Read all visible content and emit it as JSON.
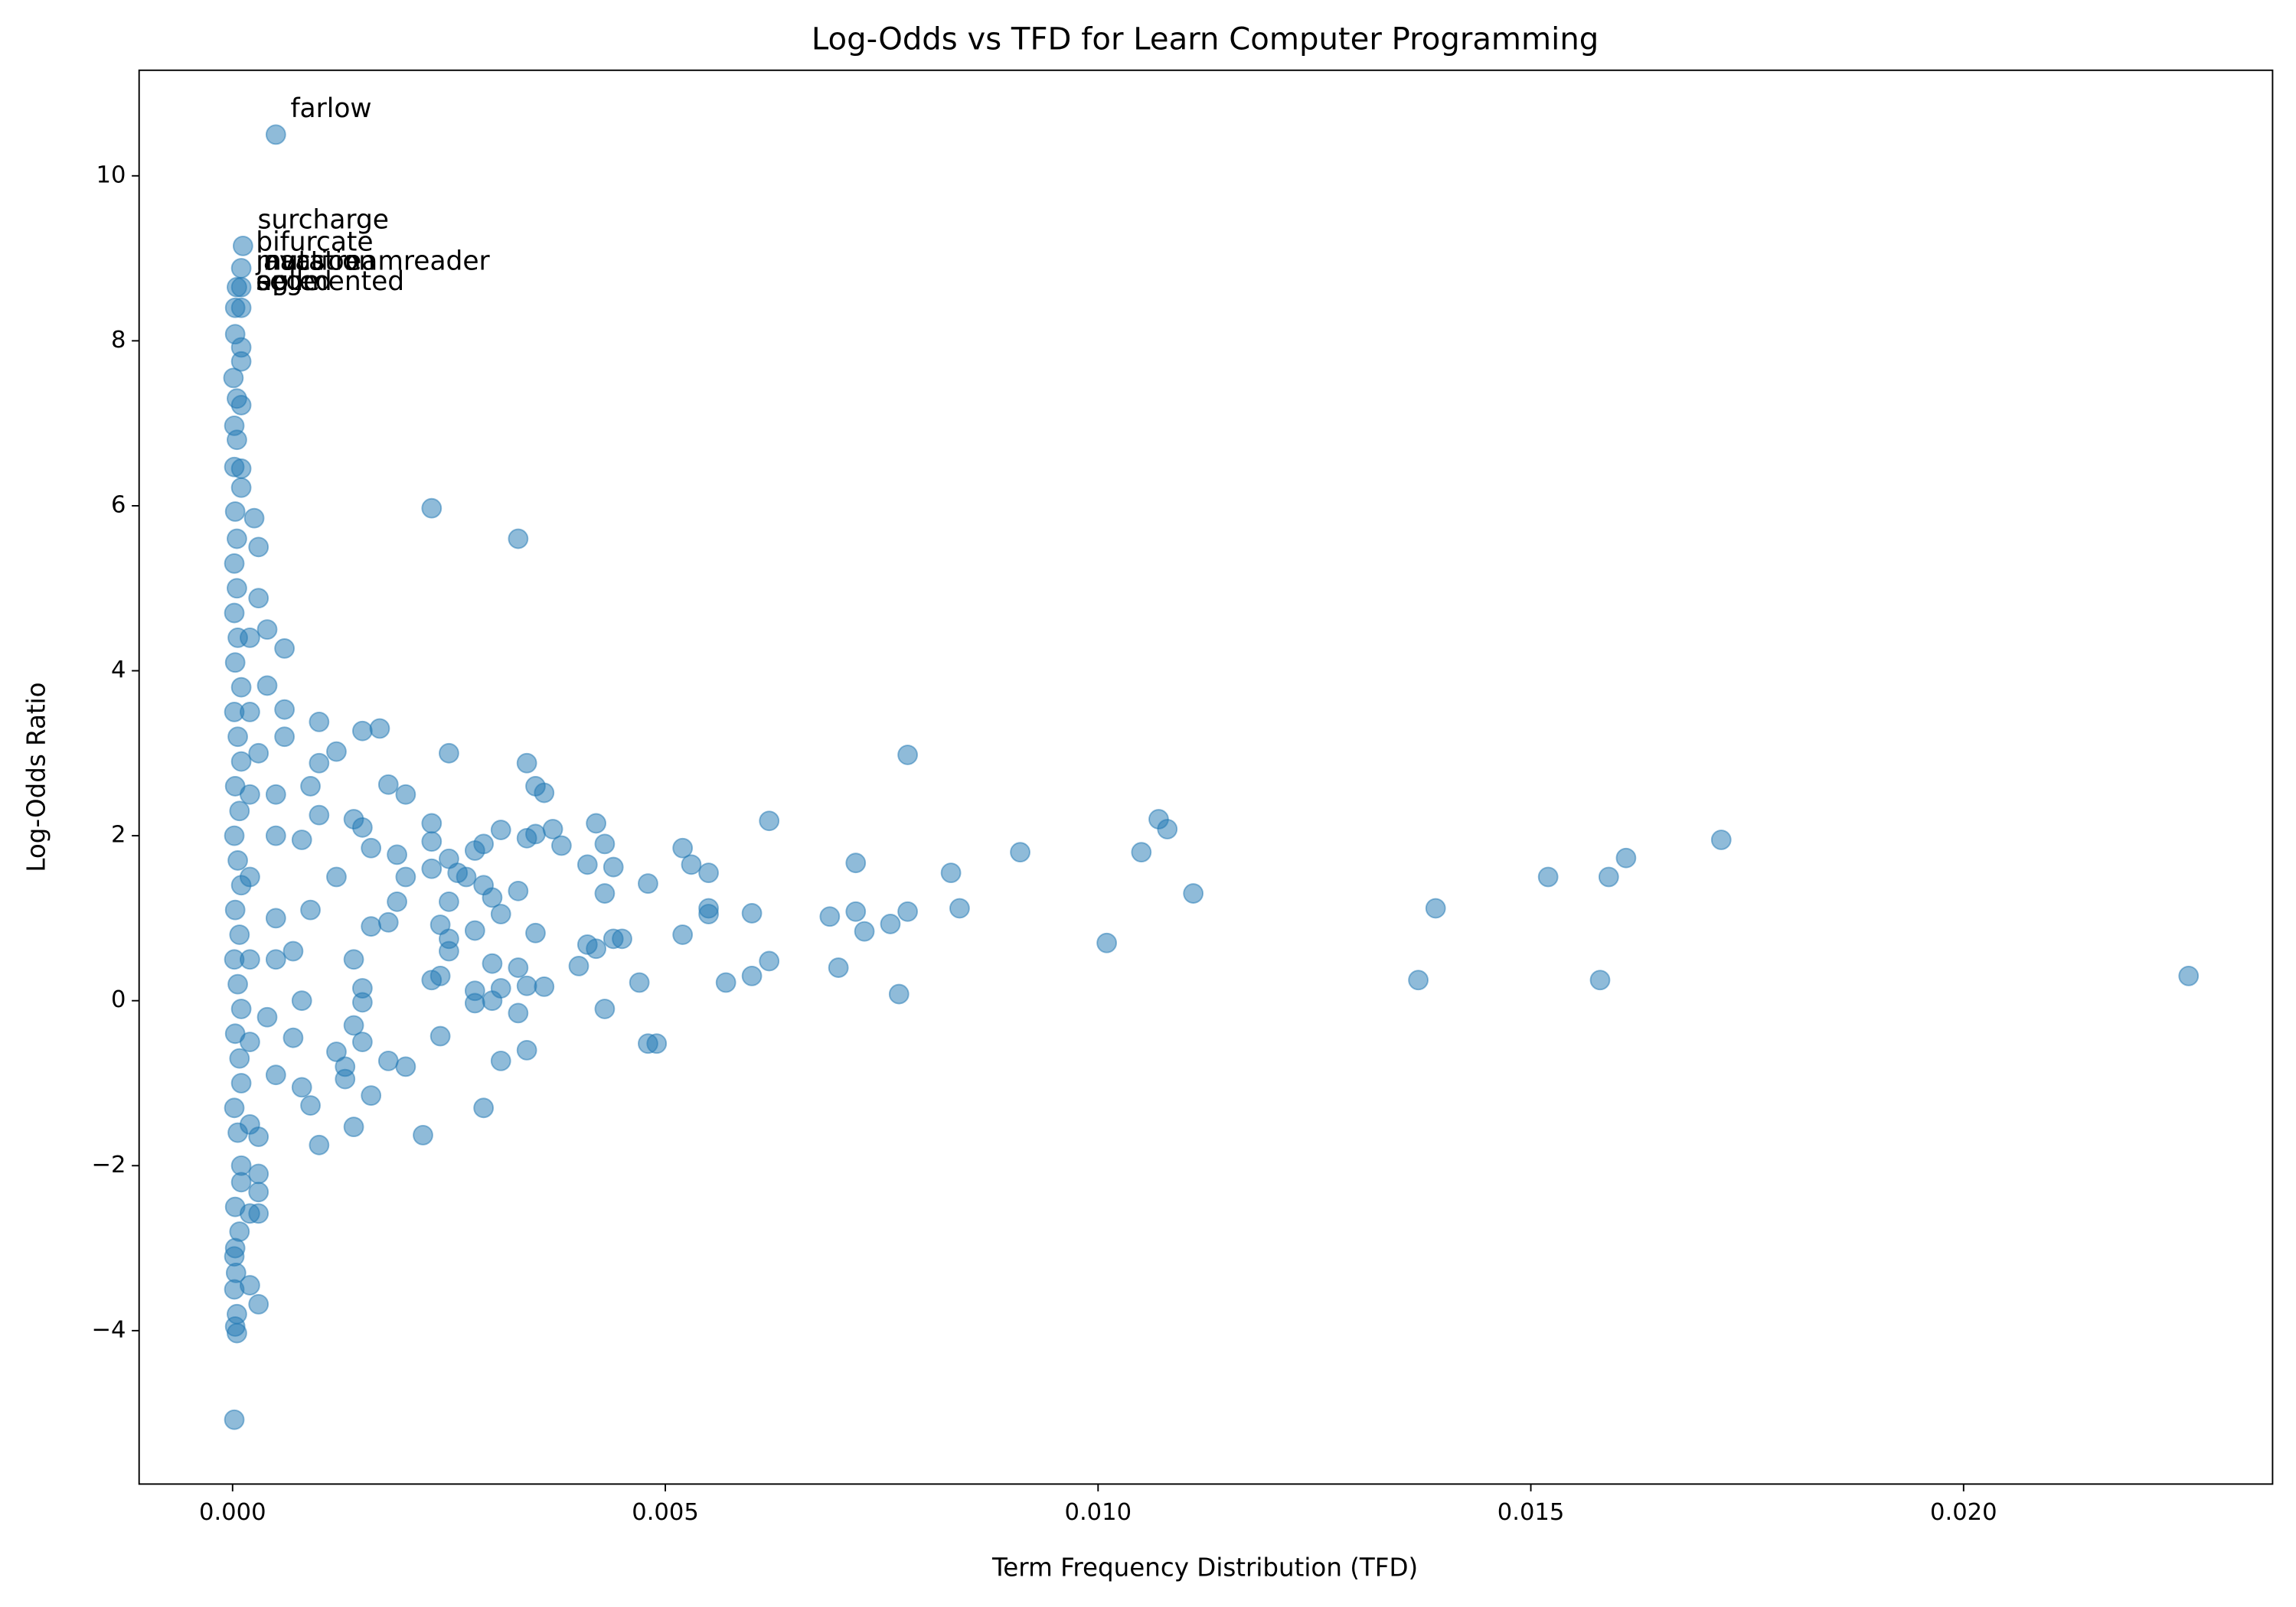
{
  "chart_data": {
    "type": "scatter",
    "title": "Log-Odds vs TFD for Learn Computer Programming",
    "xlabel": "Term Frequency Distribution (TFD)",
    "ylabel": "Log-Odds Ratio",
    "color": "#1f77b4",
    "alpha": 0.5,
    "xlim": [
      -0.00108,
      0.02357
    ],
    "ylim": [
      -5.86,
      11.28
    ],
    "xticks": [
      {
        "value": 0,
        "label": "0.000"
      },
      {
        "value": 0.005,
        "label": "0.005"
      },
      {
        "value": 0.01,
        "label": "0.010"
      },
      {
        "value": 0.015,
        "label": "0.015"
      },
      {
        "value": 0.02,
        "label": "0.020"
      }
    ],
    "yticks": [
      {
        "value": -4,
        "label": "−4"
      },
      {
        "value": -2,
        "label": "−2"
      },
      0,
      2,
      4,
      6,
      8,
      10
    ],
    "x": [
      0.0005,
      0.00012,
      0.0001,
      0.0001,
      5e-05,
      0.0001,
      3e-05,
      3e-05,
      0.0001,
      0.0001,
      1e-05,
      5e-05,
      0.0001,
      2e-05,
      5e-05,
      2e-05,
      0.0001,
      0.0001,
      3e-05,
      5e-05,
      2e-05,
      5e-05,
      2e-05,
      6e-05,
      3e-05,
      0.0001,
      2e-05,
      6e-05,
      0.0001,
      3e-05,
      8e-05,
      2e-05,
      6e-05,
      0.0001,
      3e-05,
      8e-05,
      2e-05,
      6e-05,
      0.0001,
      3e-05,
      8e-05,
      2e-05,
      6e-05,
      0.0001,
      3e-05,
      8e-05,
      2e-05,
      4e-05,
      0.0023,
      0.0033,
      0.00025,
      0.0003,
      0.0003,
      0.0004,
      0.0006,
      0.0004,
      0.0006,
      0.001,
      0.0015,
      0.0017,
      0.0025,
      0.0034,
      0.0035,
      0.0036,
      0.0078,
      0.0062,
      0.0107,
      0.0108,
      0.0105,
      0.0091,
      0.0172,
      0.0161,
      0.0152,
      0.0159,
      0.0111,
      0.0139,
      0.0101,
      0.0137,
      0.0158,
      0.0226,
      0.0072,
      0.0083,
      0.0084,
      0.0078,
      0.0076,
      0.0073,
      0.0072,
      0.0069,
      0.007,
      0.0077,
      0.0062,
      0.006,
      0.006,
      0.0057,
      0.0055,
      0.0053,
      0.0052,
      0.0055,
      0.0055,
      0.0052,
      0.0048,
      0.0047,
      0.0048,
      0.0049,
      0.0043,
      0.0042,
      0.0044,
      0.0043,
      0.0041,
      0.0045,
      0.0044,
      0.0042,
      0.0041,
      0.004,
      0.0043,
      0.0037,
      0.0038,
      0.0035,
      0.0034,
      0.0031,
      0.0033,
      0.0031,
      0.0035,
      0.0033,
      0.0034,
      0.0036,
      0.0031,
      0.0033,
      0.0034,
      0.0031,
      0.0029,
      0.003,
      0.003,
      0.0028,
      0.0028,
      0.0028,
      0.0029,
      0.0028,
      0.0029,
      0.003,
      0.0027,
      0.0025,
      0.0023,
      0.0023,
      0.0023,
      0.0026,
      0.0025,
      0.0024,
      0.0025,
      0.0025,
      0.0024,
      0.0023,
      0.0022,
      0.0024,
      0.002,
      0.0018,
      0.0016,
      0.0014,
      0.001,
      0.0008,
      0.0009,
      0.0003,
      0.0003,
      0.0003,
      0.0002,
      0.0003,
      0.0002,
      5e-05,
      3e-05,
      5e-05,
      2e-05,
      2e-05,
      3e-05,
      0.0001,
      0.0001,
      0.0002,
      0.0003,
      0.0005,
      0.0007,
      0.0012,
      0.0013,
      0.0013,
      0.0015,
      0.0014,
      0.0015,
      0.0015,
      0.0014,
      0.0016,
      0.0018,
      0.0019,
      0.002,
      0.0019,
      0.0018,
      0.002,
      0.0015,
      0.0014,
      0.0016,
      0.0012,
      0.0012,
      0.001,
      0.0009,
      0.001,
      0.0008,
      0.0009,
      0.0007,
      0.0008,
      0.0006,
      0.0005,
      0.0005,
      0.0005,
      0.0005,
      0.0004,
      0.0003,
      0.0002,
      0.0002,
      0.0002,
      0.0002,
      0.0002,
      0.0002
    ],
    "values": [
      10.5,
      9.15,
      8.88,
      8.65,
      8.65,
      8.4,
      8.4,
      8.08,
      7.92,
      7.75,
      7.55,
      7.3,
      7.22,
      6.97,
      6.8,
      6.47,
      6.45,
      6.22,
      5.93,
      5.6,
      5.3,
      5.0,
      4.7,
      4.4,
      4.1,
      3.8,
      3.5,
      3.2,
      2.9,
      2.6,
      2.3,
      2.0,
      1.7,
      1.4,
      1.1,
      0.8,
      0.5,
      0.2,
      -0.1,
      -0.4,
      -0.7,
      -1.3,
      -1.6,
      -2.2,
      -2.5,
      -2.8,
      -3.1,
      -3.3,
      5.97,
      5.6,
      5.85,
      5.5,
      4.88,
      4.5,
      4.27,
      3.82,
      3.53,
      3.38,
      3.27,
      3.3,
      3.0,
      2.88,
      2.6,
      2.52,
      2.98,
      2.18,
      2.2,
      2.08,
      1.8,
      1.8,
      1.95,
      1.73,
      1.5,
      1.5,
      1.3,
      1.12,
      0.7,
      0.25,
      0.25,
      0.3,
      1.67,
      1.55,
      1.12,
      1.08,
      0.93,
      0.84,
      1.08,
      1.02,
      0.4,
      0.08,
      0.48,
      1.06,
      0.3,
      0.22,
      1.55,
      1.65,
      1.85,
      1.05,
      1.12,
      0.8,
      1.42,
      0.22,
      -0.52,
      -0.52,
      1.9,
      2.15,
      1.62,
      1.3,
      1.65,
      0.75,
      0.75,
      0.63,
      0.68,
      0.42,
      -0.1,
      2.08,
      1.88,
      2.02,
      1.97,
      2.07,
      1.33,
      1.05,
      0.82,
      0.4,
      0.18,
      0.17,
      0.15,
      -0.15,
      -0.6,
      -0.73,
      -1.3,
      0.45,
      0.0,
      -0.03,
      0.12,
      0.85,
      1.9,
      1.82,
      1.4,
      1.25,
      1.5,
      1.72,
      2.15,
      1.93,
      1.6,
      1.55,
      1.2,
      0.92,
      0.75,
      0.6,
      0.3,
      0.25,
      -1.63,
      -0.43,
      -0.8,
      -0.73,
      -1.15,
      -1.53,
      -1.75,
      -1.05,
      -1.27,
      -2.1,
      -2.32,
      -2.58,
      -2.58,
      -3.68,
      -3.45,
      -3.8,
      -3.95,
      -4.03,
      -5.08,
      -3.5,
      -3.0,
      -2.0,
      -1.0,
      -1.5,
      -1.65,
      -0.9,
      -0.45,
      -0.62,
      -0.8,
      -0.95,
      -0.5,
      -0.3,
      -0.02,
      0.15,
      0.5,
      0.9,
      0.95,
      1.2,
      1.5,
      1.77,
      2.62,
      2.5,
      2.1,
      2.2,
      1.85,
      1.5,
      3.02,
      2.88,
      2.6,
      2.25,
      1.95,
      1.1,
      0.6,
      0.0,
      3.2,
      2.5,
      2.0,
      1.0,
      0.5,
      -0.2,
      3.0,
      4.4,
      3.5,
      2.5,
      1.5,
      0.5,
      -0.5
    ],
    "annotations": [
      {
        "text": "farlow",
        "x": 0.0005,
        "y": 10.5
      },
      {
        "text": "surcharge",
        "x": 0.00012,
        "y": 9.15
      },
      {
        "text": "bifurcate",
        "x": 0.0001,
        "y": 8.88
      },
      {
        "text": "javastreamreader",
        "x": 0.0001,
        "y": 8.65
      },
      {
        "text": "inaction",
        "x": 0.0001,
        "y": 8.65
      },
      {
        "text": "mutation",
        "x": 0.0001,
        "y": 8.65
      },
      {
        "text": "opted",
        "x": 0.0001,
        "y": 8.4
      },
      {
        "text": "agile",
        "x": 0.0001,
        "y": 8.4
      },
      {
        "text": "segmented",
        "x": 0.0001,
        "y": 8.4
      }
    ]
  }
}
